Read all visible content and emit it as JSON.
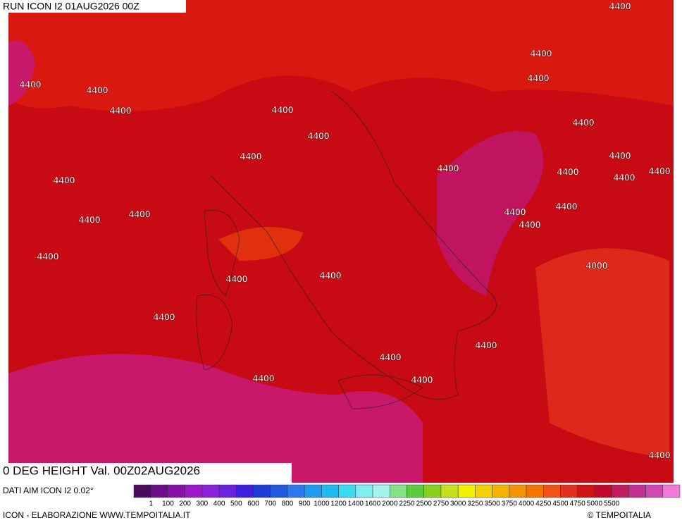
{
  "header": {
    "title": "RUN ICON I2 01AUG2026 00Z"
  },
  "map": {
    "contour_labels": [
      "4400",
      "4400",
      "4400",
      "4400",
      "4400",
      "4400",
      "4400",
      "4400",
      "4400",
      "4400",
      "4400",
      "4400",
      "4400",
      "4400",
      "4400",
      "4400",
      "4400",
      "4400",
      "4400",
      "4400",
      "4400",
      "4400",
      "4000",
      "4400",
      "4400",
      "4400",
      "4400",
      "4400",
      "4400",
      "4400",
      "4400"
    ]
  },
  "footer": {
    "title": "0 DEG HEIGHT Val. 00Z02AUG2026",
    "source": "DATI AIM ICON I2 0.02°",
    "credit": "ICON - ELABORAZIONE WWW.TEMPOITALIA.IT",
    "copyright": "© TEMPOITALIA"
  },
  "legend": {
    "colors": [
      "#4a0a5e",
      "#6a0d86",
      "#8610a8",
      "#9c18cc",
      "#8a22dc",
      "#6a22dc",
      "#3c20dc",
      "#1e3cd8",
      "#2258e0",
      "#2c78ec",
      "#209cee",
      "#1cbcf0",
      "#3cdcf0",
      "#80eef0",
      "#a8f2ee",
      "#88e088",
      "#5ccc3c",
      "#88d020",
      "#c4e020",
      "#f4f000",
      "#f4d000",
      "#f4b400",
      "#f49400",
      "#f47400",
      "#f05218",
      "#e03020",
      "#d01414",
      "#c00828",
      "#c01c60",
      "#c03090",
      "#d048b4",
      "#f07ad8"
    ],
    "labels": [
      "1",
      "100",
      "200",
      "300",
      "400",
      "500",
      "600",
      "700",
      "800",
      "900",
      "1000",
      "1200",
      "1400",
      "1600",
      "2000",
      "2250",
      "2500",
      "2750",
      "3000",
      "3250",
      "3500",
      "3750",
      "4000",
      "4250",
      "4500",
      "4750",
      "5000",
      "5500"
    ]
  }
}
